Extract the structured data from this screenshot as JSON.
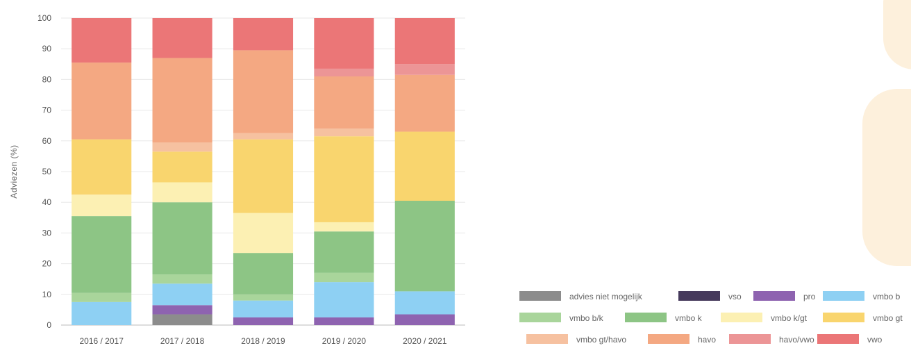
{
  "chart_data": {
    "type": "bar",
    "stacked": true,
    "ylabel": "Adviezen (%)",
    "ylim": [
      0,
      100
    ],
    "yticks": [
      "0",
      "10",
      "20",
      "30",
      "40",
      "50",
      "60",
      "70",
      "80",
      "90",
      "100"
    ],
    "grid": true,
    "legend_position": "bottom-right",
    "categories": [
      "2016 / 2017",
      "2017 / 2018",
      "2018 / 2019",
      "2019 / 2020",
      "2020 / 2021"
    ],
    "series": [
      {
        "name": "advies niet mogelijk",
        "color": "#8c8c8c",
        "values": [
          0,
          3.5,
          0,
          0,
          0
        ]
      },
      {
        "name": "vso",
        "color": "#463a5c",
        "values": [
          0,
          0,
          0,
          0,
          0
        ]
      },
      {
        "name": "pro",
        "color": "#8e63b0",
        "values": [
          0,
          3,
          2.5,
          2.5,
          3.5
        ]
      },
      {
        "name": "vmbo b",
        "color": "#8ed0f3",
        "values": [
          7.5,
          7,
          5.5,
          11.5,
          7.5
        ]
      },
      {
        "name": "vmbo b/k",
        "color": "#a9d59b",
        "values": [
          3,
          3,
          2,
          3,
          0
        ]
      },
      {
        "name": "vmbo k",
        "color": "#8dc585",
        "values": [
          25,
          23.5,
          13.5,
          13.5,
          29.5
        ]
      },
      {
        "name": "vmbo k/gt",
        "color": "#fcf0b3",
        "values": [
          7,
          6.5,
          13,
          3,
          0
        ]
      },
      {
        "name": "vmbo gt",
        "color": "#f9d56e",
        "values": [
          18,
          10,
          24,
          28,
          22.5
        ]
      },
      {
        "name": "vmbo gt/havo",
        "color": "#f6c1a0",
        "values": [
          0,
          3,
          2,
          2.5,
          0
        ]
      },
      {
        "name": "havo",
        "color": "#f4a882",
        "values": [
          25,
          27.5,
          27,
          17,
          18.5
        ]
      },
      {
        "name": "havo/vwo",
        "color": "#ec9596",
        "values": [
          0,
          0,
          0,
          2.5,
          3.5
        ]
      },
      {
        "name": "vwo",
        "color": "#eb7677",
        "values": [
          14.5,
          13,
          10.5,
          16.5,
          15
        ]
      }
    ]
  }
}
